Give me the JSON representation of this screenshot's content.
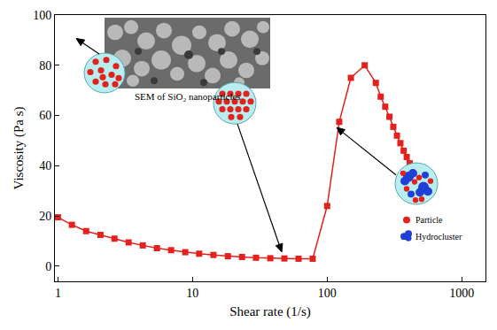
{
  "chart_data": {
    "type": "line",
    "x": [
      1,
      1.27,
      1.62,
      2.07,
      2.63,
      3.35,
      4.27,
      5.44,
      6.93,
      8.83,
      11.2,
      14.3,
      18.3,
      23.3,
      29.6,
      37.8,
      48.1,
      61.3,
      78.1,
      100,
      123,
      150,
      190,
      230,
      250,
      270,
      290,
      310,
      330,
      350,
      370,
      390,
      410
    ],
    "values": [
      19.5,
      16.5,
      14,
      12.5,
      11,
      9.5,
      8.3,
      7.2,
      6.4,
      5.6,
      5,
      4.5,
      4,
      3.7,
      3.4,
      3.2,
      3.1,
      3,
      3,
      24,
      57.5,
      75,
      80,
      73,
      67.5,
      63.5,
      59.5,
      55.5,
      52,
      49,
      46,
      43.5,
      41
    ],
    "color": "#e4211c",
    "marker": "square",
    "line_style": "solid",
    "log": "x",
    "xlim": [
      0.95,
      1500
    ],
    "xticks": [
      1,
      10,
      100,
      1000
    ],
    "ylim": [
      -6,
      100
    ],
    "yticks": [
      0,
      20,
      40,
      60,
      80,
      100
    ],
    "grid": false,
    "xlabel": "Shear rate (1/s)",
    "ylabel": "Viscosity (Pa s)",
    "annotations": [
      {
        "text": "SEM of SiO₂ nanoparticles"
      },
      {
        "text": "Particle"
      },
      {
        "text": "Hydrocluster"
      }
    ]
  }
}
